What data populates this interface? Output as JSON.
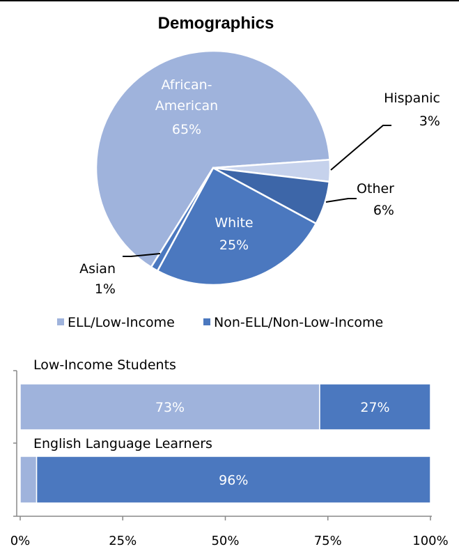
{
  "title": "Demographics",
  "colors": {
    "light": "#9fb3dc",
    "medium": "#4b78bf",
    "dark": "#3d66a8",
    "lightest": "#c6d2ec"
  },
  "chart_data": [
    {
      "type": "pie",
      "title": "Demographics",
      "slices": [
        {
          "name": "African-American",
          "label_lines": [
            "African-",
            "American"
          ],
          "value": 65,
          "value_label": "65%",
          "color": "#9fb3dc"
        },
        {
          "name": "Hispanic",
          "label_lines": [
            "Hispanic"
          ],
          "value": 3,
          "value_label": "3%",
          "color": "#c6d2ec"
        },
        {
          "name": "Other",
          "label_lines": [
            "Other"
          ],
          "value": 6,
          "value_label": "6%",
          "color": "#3d66a8"
        },
        {
          "name": "White",
          "label_lines": [
            "White"
          ],
          "value": 25,
          "value_label": "25%",
          "color": "#4b78bf"
        },
        {
          "name": "Asian",
          "label_lines": [
            "Asian"
          ],
          "value": 1,
          "value_label": "1%",
          "color": "#4b78bf"
        }
      ]
    },
    {
      "type": "bar",
      "orientation": "horizontal",
      "stacked": true,
      "categories": [
        "Low-Income Students",
        "English Language Learners"
      ],
      "series": [
        {
          "name": "ELL/Low-Income",
          "values": [
            73,
            4
          ],
          "labels": [
            "73%",
            ""
          ],
          "color": "#9fb3dc"
        },
        {
          "name": "Non-ELL/Non-Low-Income",
          "values": [
            27,
            96
          ],
          "labels": [
            "27%",
            "96%"
          ],
          "color": "#4b78bf"
        }
      ],
      "xlim": [
        0,
        100
      ],
      "ticks": [
        "0%",
        "25%",
        "50%",
        "75%",
        "100%"
      ],
      "legend": "top"
    }
  ]
}
